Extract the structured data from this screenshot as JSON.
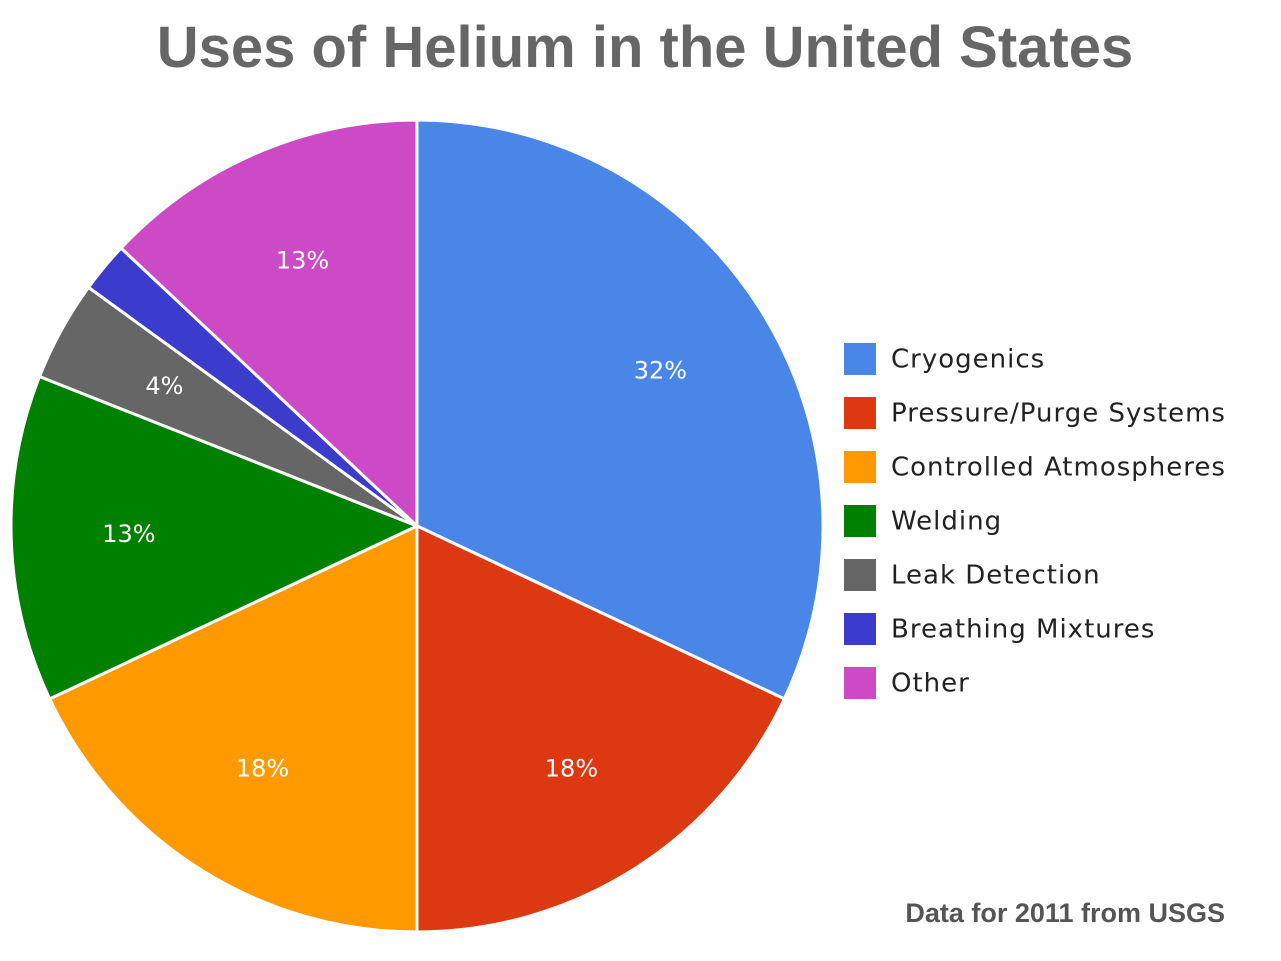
{
  "chart_data": {
    "type": "pie",
    "title": "Uses of Helium in the United States",
    "source_note": "Data for 2011 from USGS",
    "legend_position": "right",
    "slices": [
      {
        "name": "Cryogenics",
        "value": 32,
        "label": "32%",
        "color": "#4a86e8"
      },
      {
        "name": "Pressure/Purge Systems",
        "value": 18,
        "label": "18%",
        "color": "#dc3912"
      },
      {
        "name": "Controlled Atmospheres",
        "value": 18,
        "label": "18%",
        "color": "#ff9900"
      },
      {
        "name": "Welding",
        "value": 13,
        "label": "13%",
        "color": "#008000"
      },
      {
        "name": "Leak Detection",
        "value": 4,
        "label": "4%",
        "color": "#666666"
      },
      {
        "name": "Breathing Mixtures",
        "value": 2,
        "label": "",
        "color": "#3b3bcc"
      },
      {
        "name": "Other",
        "value": 13,
        "label": "13%",
        "color": "#cc4ac6"
      }
    ]
  }
}
